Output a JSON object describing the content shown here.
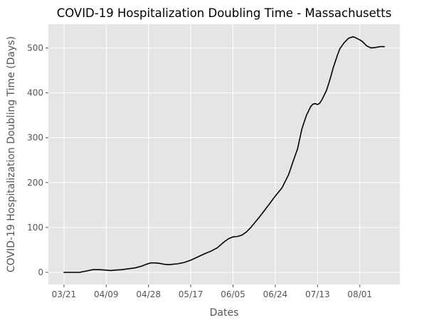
{
  "chart_data": {
    "type": "line",
    "title": "COVID-19 Hospitalization Doubling Time - Massachusetts",
    "xlabel": "Dates",
    "ylabel": "COVID-19 Hospitalization Doubling Time (Days)",
    "x_tick_labels": [
      "03/21",
      "04/09",
      "04/28",
      "05/17",
      "06/05",
      "06/24",
      "07/13",
      "08/01"
    ],
    "x_tick_days": [
      0,
      19,
      38,
      57,
      76,
      95,
      114,
      133
    ],
    "y_ticks": [
      0,
      100,
      200,
      300,
      400,
      500
    ],
    "xlim": [
      -7,
      151
    ],
    "ylim": [
      -27,
      553
    ],
    "grid": true,
    "colors": {
      "plot_background": "#e5e5e5",
      "grid": "#ffffff",
      "line": "#000000"
    },
    "series": [
      {
        "x": [
          0,
          4,
          7,
          10,
          13,
          16,
          19,
          21,
          23,
          26,
          29,
          32,
          35,
          37,
          39,
          41,
          43,
          45,
          47,
          49,
          51,
          54,
          57,
          60,
          63,
          66,
          69,
          72,
          74,
          76,
          78,
          80,
          82,
          84,
          86,
          88,
          90,
          92,
          95,
          98,
          101,
          103,
          105,
          107,
          109,
          110,
          111,
          112,
          113,
          114,
          115,
          116,
          117,
          118,
          119,
          120,
          121,
          122,
          123,
          124,
          126,
          128,
          130,
          131,
          133,
          134,
          135,
          136,
          138,
          140,
          141,
          142,
          144
        ],
        "y": [
          0,
          0,
          0,
          3,
          6,
          6,
          5,
          4,
          5,
          6,
          8,
          10,
          14,
          18,
          21,
          21,
          20,
          18,
          17,
          18,
          19,
          22,
          27,
          34,
          41,
          47,
          55,
          68,
          75,
          79,
          80,
          83,
          90,
          100,
          112,
          124,
          137,
          150,
          170,
          188,
          218,
          247,
          275,
          320,
          350,
          360,
          370,
          375,
          376,
          374,
          377,
          385,
          395,
          405,
          420,
          437,
          455,
          470,
          485,
          498,
          512,
          522,
          525,
          523,
          518,
          515,
          510,
          505,
          500,
          501,
          502,
          503,
          503
        ]
      }
    ]
  }
}
